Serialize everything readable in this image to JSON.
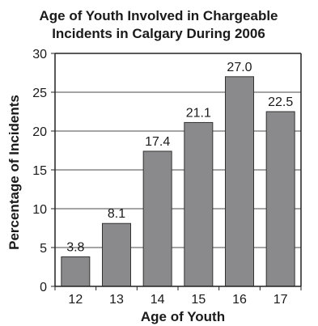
{
  "chart_data": {
    "type": "bar",
    "title_lines": [
      "Age of Youth Involved in Chargeable",
      "Incidents in Calgary During 2006"
    ],
    "xlabel": "Age of Youth",
    "ylabel": "Percentage of Incidents",
    "categories": [
      "12",
      "13",
      "14",
      "15",
      "16",
      "17"
    ],
    "values": [
      3.8,
      8.1,
      17.4,
      21.1,
      27.0,
      22.5
    ],
    "value_labels": [
      "3.8",
      "8.1",
      "17.4",
      "21.1",
      "27.0",
      "22.5"
    ],
    "ylim": [
      0,
      30
    ],
    "yticks": [
      0,
      5,
      10,
      15,
      20,
      25,
      30
    ],
    "grid": true,
    "legend": "none",
    "colors": {
      "bar_fill": "#8a8a8c",
      "bar_stroke": "#333333",
      "axis": "#222222",
      "grid": "#4a4a4a",
      "text": "#1a1a1a"
    }
  }
}
